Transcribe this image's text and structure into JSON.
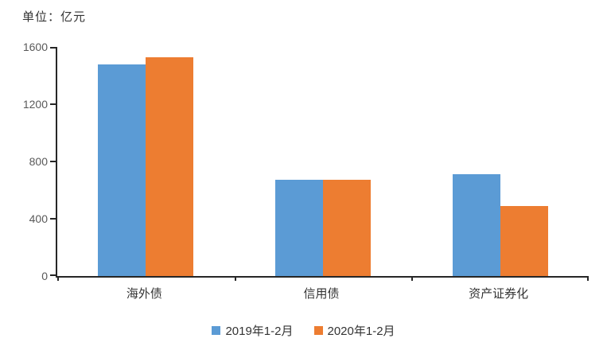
{
  "unit_label": "单位：亿元",
  "chart_data": {
    "type": "bar",
    "title": "",
    "xlabel": "",
    "ylabel": "亿元",
    "categories": [
      "海外债",
      "信用债",
      "资产证券化"
    ],
    "series": [
      {
        "name": "2019年1-2月",
        "color": "#5B9BD5",
        "values": [
          1480,
          675,
          710
        ]
      },
      {
        "name": "2020年1-2月",
        "color": "#ED7D31",
        "values": [
          1530,
          675,
          490
        ]
      }
    ],
    "ylim": [
      0,
      1600
    ],
    "yticks": [
      0,
      400,
      800,
      1200,
      1600
    ],
    "grid": false,
    "legend_position": "bottom"
  },
  "colors": {
    "axis_line": "#262626",
    "tick_label": "#595959",
    "text": "#333333",
    "background": "#ffffff"
  }
}
